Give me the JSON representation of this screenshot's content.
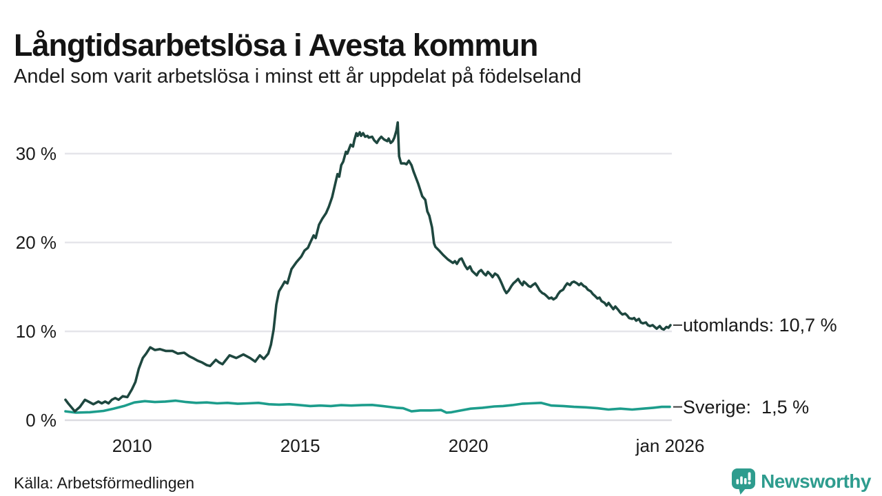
{
  "header": {
    "title": "Långtidsarbetslösa i Avesta kommun",
    "subtitle": "Andel som varit arbetslösa i minst ett år uppdelat på födelseland"
  },
  "chart_data": {
    "type": "line",
    "title": "Långtidsarbetslösa i Avesta kommun",
    "subtitle": "Andel som varit arbetslösa i minst ett år uppdelat på födelseland",
    "x_domain": [
      2008.0,
      2026.05
    ],
    "y_domain": [
      0,
      30
    ],
    "grid": "horizontal",
    "grid_color": "#e5e5ea",
    "zero_line_color": "#dcdce1",
    "connector_color": "#3c3c3c",
    "y_ticks": [
      {
        "value": 0,
        "label": "0 %"
      },
      {
        "value": 10,
        "label": "10 %"
      },
      {
        "value": 20,
        "label": "20 %"
      },
      {
        "value": 30,
        "label": "30 %"
      }
    ],
    "x_ticks": [
      {
        "value": 2010,
        "label": "2010"
      },
      {
        "value": 2015,
        "label": "2015"
      },
      {
        "value": 2020,
        "label": "2020"
      },
      {
        "value": 2026,
        "label": "jan 2026"
      }
    ],
    "series": [
      {
        "name": "utomlands",
        "color": "#1e473f",
        "end_label": "utomlands: 10,7 %",
        "end_value": 10.7,
        "points": [
          [
            2008.02,
            2.3
          ],
          [
            2008.1,
            1.9
          ],
          [
            2008.3,
            1.0
          ],
          [
            2008.45,
            1.5
          ],
          [
            2008.6,
            2.3
          ],
          [
            2008.7,
            2.1
          ],
          [
            2008.85,
            1.8
          ],
          [
            2009.0,
            2.1
          ],
          [
            2009.1,
            1.9
          ],
          [
            2009.2,
            2.1
          ],
          [
            2009.3,
            1.9
          ],
          [
            2009.4,
            2.3
          ],
          [
            2009.5,
            2.5
          ],
          [
            2009.6,
            2.3
          ],
          [
            2009.72,
            2.7
          ],
          [
            2009.86,
            2.6
          ],
          [
            2010.0,
            3.5
          ],
          [
            2010.1,
            4.3
          ],
          [
            2010.2,
            5.8
          ],
          [
            2010.32,
            7.0
          ],
          [
            2010.42,
            7.5
          ],
          [
            2010.54,
            8.2
          ],
          [
            2010.68,
            7.9
          ],
          [
            2010.83,
            8.0
          ],
          [
            2011.0,
            7.8
          ],
          [
            2011.2,
            7.8
          ],
          [
            2011.36,
            7.5
          ],
          [
            2011.55,
            7.6
          ],
          [
            2011.7,
            7.2
          ],
          [
            2011.81,
            7.0
          ],
          [
            2011.95,
            6.7
          ],
          [
            2012.08,
            6.5
          ],
          [
            2012.22,
            6.2
          ],
          [
            2012.32,
            6.1
          ],
          [
            2012.49,
            6.8
          ],
          [
            2012.59,
            6.5
          ],
          [
            2012.69,
            6.3
          ],
          [
            2012.9,
            7.3
          ],
          [
            2013.1,
            7.0
          ],
          [
            2013.31,
            7.4
          ],
          [
            2013.51,
            7.0
          ],
          [
            2013.66,
            6.6
          ],
          [
            2013.8,
            7.3
          ],
          [
            2013.92,
            6.9
          ],
          [
            2014.05,
            7.5
          ],
          [
            2014.13,
            8.5
          ],
          [
            2014.21,
            10.2
          ],
          [
            2014.29,
            13.0
          ],
          [
            2014.37,
            14.5
          ],
          [
            2014.48,
            15.2
          ],
          [
            2014.54,
            15.6
          ],
          [
            2014.62,
            15.4
          ],
          [
            2014.74,
            17.0
          ],
          [
            2014.89,
            17.8
          ],
          [
            2015.03,
            18.4
          ],
          [
            2015.13,
            19.1
          ],
          [
            2015.23,
            19.4
          ],
          [
            2015.3,
            20.0
          ],
          [
            2015.4,
            20.8
          ],
          [
            2015.46,
            20.5
          ],
          [
            2015.56,
            22.0
          ],
          [
            2015.66,
            22.7
          ],
          [
            2015.77,
            23.3
          ],
          [
            2015.85,
            24.0
          ],
          [
            2015.95,
            25.1
          ],
          [
            2016.01,
            26.1
          ],
          [
            2016.11,
            27.7
          ],
          [
            2016.16,
            27.4
          ],
          [
            2016.22,
            28.7
          ],
          [
            2016.28,
            29.1
          ],
          [
            2016.36,
            30.2
          ],
          [
            2016.4,
            30.0
          ],
          [
            2016.46,
            30.6
          ],
          [
            2016.5,
            31.0
          ],
          [
            2016.57,
            30.8
          ],
          [
            2016.61,
            31.5
          ],
          [
            2016.67,
            32.3
          ],
          [
            2016.71,
            32.0
          ],
          [
            2016.77,
            32.4
          ],
          [
            2016.81,
            32.0
          ],
          [
            2016.87,
            32.3
          ],
          [
            2016.93,
            31.9
          ],
          [
            2017.0,
            32.0
          ],
          [
            2017.04,
            31.8
          ],
          [
            2017.14,
            31.9
          ],
          [
            2017.2,
            31.5
          ],
          [
            2017.28,
            31.2
          ],
          [
            2017.34,
            31.6
          ],
          [
            2017.41,
            31.9
          ],
          [
            2017.49,
            31.6
          ],
          [
            2017.59,
            31.4
          ],
          [
            2017.63,
            31.7
          ],
          [
            2017.69,
            31.2
          ],
          [
            2017.75,
            31.4
          ],
          [
            2017.8,
            31.8
          ],
          [
            2017.86,
            32.6
          ],
          [
            2017.9,
            33.5
          ],
          [
            2017.94,
            29.7
          ],
          [
            2018.0,
            28.9
          ],
          [
            2018.1,
            28.9
          ],
          [
            2018.16,
            28.8
          ],
          [
            2018.23,
            29.2
          ],
          [
            2018.31,
            28.7
          ],
          [
            2018.37,
            28.0
          ],
          [
            2018.51,
            26.6
          ],
          [
            2018.63,
            25.2
          ],
          [
            2018.72,
            24.8
          ],
          [
            2018.78,
            23.5
          ],
          [
            2018.84,
            23.0
          ],
          [
            2018.92,
            21.7
          ],
          [
            2018.98,
            19.9
          ],
          [
            2019.02,
            19.5
          ],
          [
            2019.13,
            19.1
          ],
          [
            2019.25,
            18.6
          ],
          [
            2019.39,
            18.1
          ],
          [
            2019.54,
            17.7
          ],
          [
            2019.6,
            17.9
          ],
          [
            2019.66,
            17.6
          ],
          [
            2019.74,
            18.1
          ],
          [
            2019.8,
            18.2
          ],
          [
            2019.9,
            17.4
          ],
          [
            2019.97,
            17.0
          ],
          [
            2020.05,
            17.3
          ],
          [
            2020.11,
            16.8
          ],
          [
            2020.25,
            16.3
          ],
          [
            2020.31,
            16.7
          ],
          [
            2020.38,
            16.9
          ],
          [
            2020.46,
            16.5
          ],
          [
            2020.52,
            16.3
          ],
          [
            2020.58,
            16.7
          ],
          [
            2020.66,
            16.4
          ],
          [
            2020.72,
            16.1
          ],
          [
            2020.79,
            16.5
          ],
          [
            2020.87,
            16.3
          ],
          [
            2020.93,
            15.9
          ],
          [
            2020.99,
            15.4
          ],
          [
            2021.07,
            14.7
          ],
          [
            2021.13,
            14.3
          ],
          [
            2021.2,
            14.6
          ],
          [
            2021.28,
            15.1
          ],
          [
            2021.34,
            15.4
          ],
          [
            2021.4,
            15.6
          ],
          [
            2021.48,
            15.9
          ],
          [
            2021.54,
            15.5
          ],
          [
            2021.61,
            15.2
          ],
          [
            2021.65,
            15.6
          ],
          [
            2021.71,
            15.4
          ],
          [
            2021.79,
            15.1
          ],
          [
            2021.85,
            15.0
          ],
          [
            2021.91,
            15.2
          ],
          [
            2021.99,
            15.4
          ],
          [
            2022.06,
            15.0
          ],
          [
            2022.12,
            14.6
          ],
          [
            2022.2,
            14.3
          ],
          [
            2022.26,
            14.2
          ],
          [
            2022.32,
            14.0
          ],
          [
            2022.4,
            13.7
          ],
          [
            2022.47,
            13.8
          ],
          [
            2022.53,
            13.6
          ],
          [
            2022.61,
            13.8
          ],
          [
            2022.67,
            14.2
          ],
          [
            2022.73,
            14.5
          ],
          [
            2022.82,
            14.7
          ],
          [
            2022.88,
            15.1
          ],
          [
            2022.94,
            15.4
          ],
          [
            2023.02,
            15.2
          ],
          [
            2023.08,
            15.5
          ],
          [
            2023.14,
            15.6
          ],
          [
            2023.23,
            15.4
          ],
          [
            2023.29,
            15.2
          ],
          [
            2023.35,
            15.4
          ],
          [
            2023.43,
            15.1
          ],
          [
            2023.49,
            15.0
          ],
          [
            2023.55,
            14.7
          ],
          [
            2023.64,
            14.5
          ],
          [
            2023.7,
            14.2
          ],
          [
            2023.76,
            14.0
          ],
          [
            2023.84,
            13.7
          ],
          [
            2023.9,
            13.8
          ],
          [
            2023.96,
            13.4
          ],
          [
            2024.05,
            13.2
          ],
          [
            2024.11,
            12.9
          ],
          [
            2024.17,
            13.2
          ],
          [
            2024.25,
            12.8
          ],
          [
            2024.31,
            12.5
          ],
          [
            2024.37,
            12.8
          ],
          [
            2024.46,
            12.4
          ],
          [
            2024.52,
            12.1
          ],
          [
            2024.58,
            11.9
          ],
          [
            2024.66,
            12.0
          ],
          [
            2024.72,
            11.8
          ],
          [
            2024.78,
            11.5
          ],
          [
            2024.87,
            11.4
          ],
          [
            2024.93,
            11.5
          ],
          [
            2024.99,
            11.2
          ],
          [
            2025.07,
            11.4
          ],
          [
            2025.13,
            11.0
          ],
          [
            2025.19,
            10.9
          ],
          [
            2025.28,
            11.0
          ],
          [
            2025.34,
            10.7
          ],
          [
            2025.4,
            10.6
          ],
          [
            2025.48,
            10.7
          ],
          [
            2025.54,
            10.5
          ],
          [
            2025.6,
            10.3
          ],
          [
            2025.69,
            10.6
          ],
          [
            2025.75,
            10.3
          ],
          [
            2025.81,
            10.2
          ],
          [
            2025.89,
            10.5
          ],
          [
            2025.95,
            10.4
          ],
          [
            2026.01,
            10.7
          ]
        ]
      },
      {
        "name": "Sverige",
        "color": "#1d9d8c",
        "end_label": "Sverige:  1,5 %",
        "end_value": 1.5,
        "points": [
          [
            2008.02,
            1.0
          ],
          [
            2008.33,
            0.85
          ],
          [
            2008.74,
            0.9
          ],
          [
            2009.15,
            1.05
          ],
          [
            2009.45,
            1.3
          ],
          [
            2009.76,
            1.6
          ],
          [
            2010.07,
            2.0
          ],
          [
            2010.38,
            2.15
          ],
          [
            2010.68,
            2.05
          ],
          [
            2010.99,
            2.1
          ],
          [
            2011.3,
            2.2
          ],
          [
            2011.61,
            2.05
          ],
          [
            2011.91,
            1.95
          ],
          [
            2012.22,
            2.0
          ],
          [
            2012.53,
            1.9
          ],
          [
            2012.84,
            1.95
          ],
          [
            2013.14,
            1.85
          ],
          [
            2013.45,
            1.9
          ],
          [
            2013.76,
            1.95
          ],
          [
            2014.07,
            1.8
          ],
          [
            2014.37,
            1.75
          ],
          [
            2014.68,
            1.8
          ],
          [
            2014.99,
            1.7
          ],
          [
            2015.3,
            1.6
          ],
          [
            2015.6,
            1.65
          ],
          [
            2015.91,
            1.6
          ],
          [
            2016.22,
            1.7
          ],
          [
            2016.52,
            1.65
          ],
          [
            2016.83,
            1.7
          ],
          [
            2017.14,
            1.72
          ],
          [
            2017.45,
            1.6
          ],
          [
            2017.65,
            1.5
          ],
          [
            2017.86,
            1.4
          ],
          [
            2018.06,
            1.35
          ],
          [
            2018.31,
            1.0
          ],
          [
            2018.57,
            1.1
          ],
          [
            2018.88,
            1.1
          ],
          [
            2019.19,
            1.15
          ],
          [
            2019.35,
            0.85
          ],
          [
            2019.5,
            0.9
          ],
          [
            2019.7,
            1.05
          ],
          [
            2020.07,
            1.3
          ],
          [
            2020.42,
            1.4
          ],
          [
            2020.77,
            1.55
          ],
          [
            2021.03,
            1.6
          ],
          [
            2021.3,
            1.7
          ],
          [
            2021.59,
            1.85
          ],
          [
            2021.85,
            1.9
          ],
          [
            2022.16,
            1.95
          ],
          [
            2022.47,
            1.65
          ],
          [
            2022.82,
            1.6
          ],
          [
            2023.14,
            1.5
          ],
          [
            2023.49,
            1.45
          ],
          [
            2023.84,
            1.35
          ],
          [
            2024.17,
            1.2
          ],
          [
            2024.52,
            1.3
          ],
          [
            2024.87,
            1.2
          ],
          [
            2025.19,
            1.3
          ],
          [
            2025.5,
            1.4
          ],
          [
            2025.75,
            1.5
          ],
          [
            2025.99,
            1.5
          ]
        ]
      }
    ]
  },
  "footer": {
    "source": "Källa: Arbetsförmedlingen",
    "logo_text": "Newsworthy",
    "logo_color": "#2e9c8e"
  }
}
